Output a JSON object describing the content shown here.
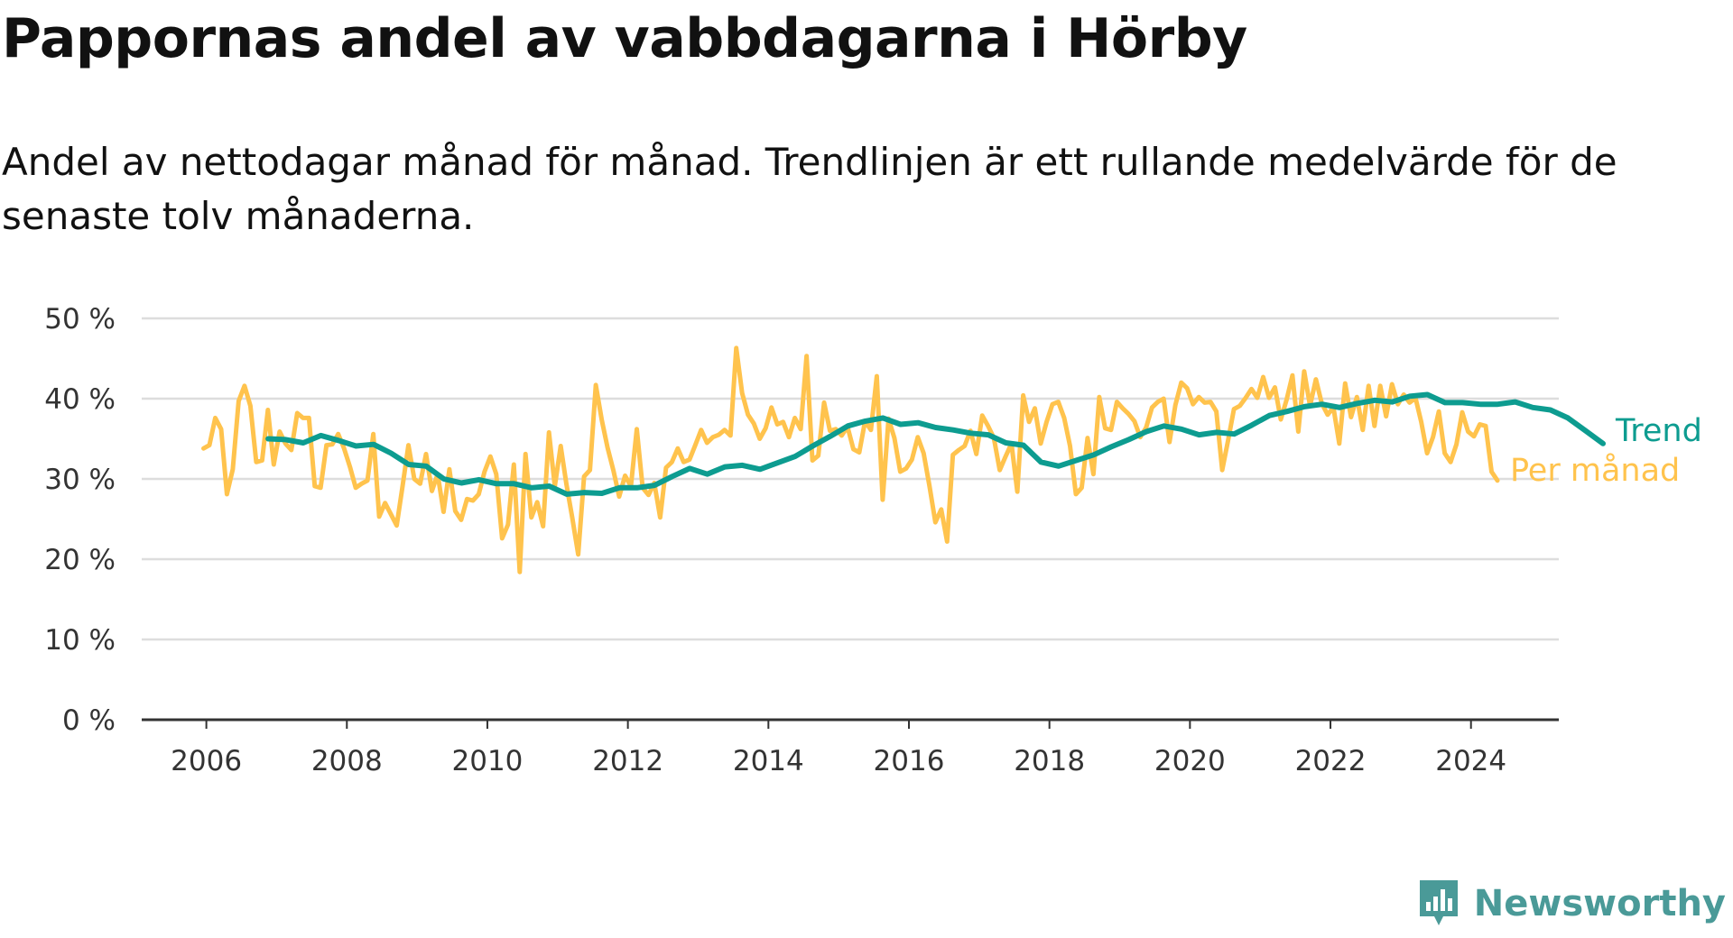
{
  "title": "Pappornas andel av vabbdagarna i Hörby",
  "subtitle": "Andel av nettodagar månad för månad. Trendlinjen är ett rullande medelvärde för de senaste tolv månaderna.",
  "brand": {
    "name": "Newsworthy",
    "icon": "newsworthy-logo-icon",
    "color": "#4a9a98"
  },
  "colors": {
    "trend": "#0d9c90",
    "monthly": "#ffc34d",
    "grid": "#dddddd",
    "axis": "#333333"
  },
  "chart_data": {
    "type": "line",
    "title": "Pappornas andel av vabbdagarna i Hörby",
    "xlabel": "",
    "ylabel": "",
    "xlim": [
      2005.08,
      2025.25
    ],
    "ylim": [
      0,
      50
    ],
    "x_ticks": [
      2006,
      2008,
      2010,
      2012,
      2014,
      2016,
      2018,
      2020,
      2022,
      2024
    ],
    "x_tick_labels": [
      "2006",
      "2008",
      "2010",
      "2012",
      "2014",
      "2016",
      "2018",
      "2020",
      "2022",
      "2024"
    ],
    "y_ticks": [
      0,
      10,
      20,
      30,
      40,
      50
    ],
    "y_tick_labels": [
      "0 %",
      "10 %",
      "20 %",
      "30 %",
      "40 %",
      "50 %"
    ],
    "grid": true,
    "legend": "right end of lines",
    "series": [
      {
        "name": "Per månad",
        "color": "#ffc34d",
        "x_start": 2005.96,
        "x_step": 0.08333,
        "values": [
          33.8,
          34.2,
          37.6,
          36.2,
          28.1,
          31.2,
          39.7,
          41.6,
          39.1,
          32.1,
          32.3,
          38.6,
          31.8,
          35.9,
          34.4,
          33.6,
          38.2,
          37.6,
          37.6,
          29.1,
          28.9,
          34.2,
          34.3,
          35.6,
          33.8,
          31.5,
          28.9,
          29.4,
          29.8,
          35.6,
          25.3,
          27.0,
          25.6,
          24.2,
          29.1,
          34.2,
          30.0,
          29.4,
          33.1,
          28.5,
          30.6,
          25.9,
          31.2,
          26.0,
          24.9,
          27.5,
          27.3,
          28.1,
          30.9,
          32.8,
          30.6,
          22.6,
          24.3,
          31.8,
          18.4,
          33.1,
          25.2,
          27.1,
          24.1,
          35.8,
          29.1,
          34.1,
          29.3,
          25.1,
          20.6,
          30.3,
          31.1,
          41.7,
          37.4,
          33.9,
          31.1,
          27.8,
          30.4,
          29.1,
          36.2,
          28.9,
          28.0,
          29.5,
          25.2,
          31.4,
          32.1,
          33.8,
          32.1,
          32.4,
          34.2,
          36.1,
          34.5,
          35.2,
          35.5,
          36.1,
          35.4,
          46.3,
          40.7,
          38.0,
          36.9,
          35.0,
          36.3,
          38.9,
          36.8,
          37.1,
          35.2,
          37.6,
          36.2,
          45.3,
          32.3,
          32.9,
          39.5,
          36.0,
          36.2,
          35.4,
          36.5,
          33.7,
          33.3,
          37.2,
          36.1,
          42.8,
          27.4,
          37.5,
          35.1,
          30.9,
          31.3,
          32.4,
          35.2,
          33.2,
          29.1,
          24.6,
          26.2,
          22.2,
          33.0,
          33.6,
          34.1,
          36.0,
          33.1,
          37.9,
          36.6,
          35.1,
          31.1,
          32.8,
          34.4,
          28.4,
          40.4,
          37.1,
          38.8,
          34.4,
          37.1,
          39.3,
          39.6,
          37.6,
          34.1,
          28.1,
          28.9,
          35.1,
          30.6,
          40.2,
          36.3,
          36.1,
          39.6,
          38.8,
          38.1,
          37.2,
          35.2,
          36.4,
          38.9,
          39.6,
          40.0,
          34.6,
          39.2,
          42.0,
          41.3,
          39.3,
          40.2,
          39.5,
          39.6,
          38.4,
          31.1,
          34.8,
          38.7,
          39.1,
          40.1,
          41.2,
          40.1,
          42.7,
          40.1,
          41.4,
          37.4,
          39.9,
          42.9,
          35.9,
          43.4,
          39.1,
          42.4,
          39.4,
          38.0,
          38.9,
          34.4,
          41.9,
          37.7,
          40.2,
          36.1,
          41.6,
          36.6,
          41.6,
          37.8,
          41.8,
          39.3,
          40.5,
          39.5,
          40.1,
          37.1,
          33.2,
          35.2,
          38.4,
          33.2,
          32.1,
          34.3,
          38.3,
          35.9,
          35.3,
          36.8,
          36.6,
          30.9,
          29.8
        ]
      },
      {
        "name": "Trend",
        "color": "#0d9c90",
        "x_start": 2006.88,
        "x_step": 0.25,
        "values": [
          35.0,
          34.9,
          34.5,
          35.4,
          34.8,
          34.1,
          34.3,
          33.2,
          31.8,
          31.6,
          30.0,
          29.5,
          29.9,
          29.4,
          29.4,
          28.9,
          29.1,
          28.1,
          28.3,
          28.2,
          28.9,
          28.9,
          29.2,
          30.3,
          31.3,
          30.6,
          31.5,
          31.7,
          31.2,
          32.0,
          32.8,
          34.1,
          35.3,
          36.6,
          37.2,
          37.6,
          36.8,
          37.0,
          36.4,
          36.1,
          35.7,
          35.5,
          34.5,
          34.2,
          32.1,
          31.6,
          32.3,
          33.0,
          34.0,
          34.9,
          35.9,
          36.6,
          36.2,
          35.5,
          35.8,
          35.6,
          36.7,
          37.9,
          38.4,
          39.0,
          39.3,
          38.9,
          39.4,
          39.8,
          39.6,
          40.3,
          40.5,
          39.5,
          39.5,
          39.3,
          39.3,
          39.6,
          38.9,
          38.6,
          37.6,
          36.0,
          34.4
        ]
      }
    ]
  }
}
